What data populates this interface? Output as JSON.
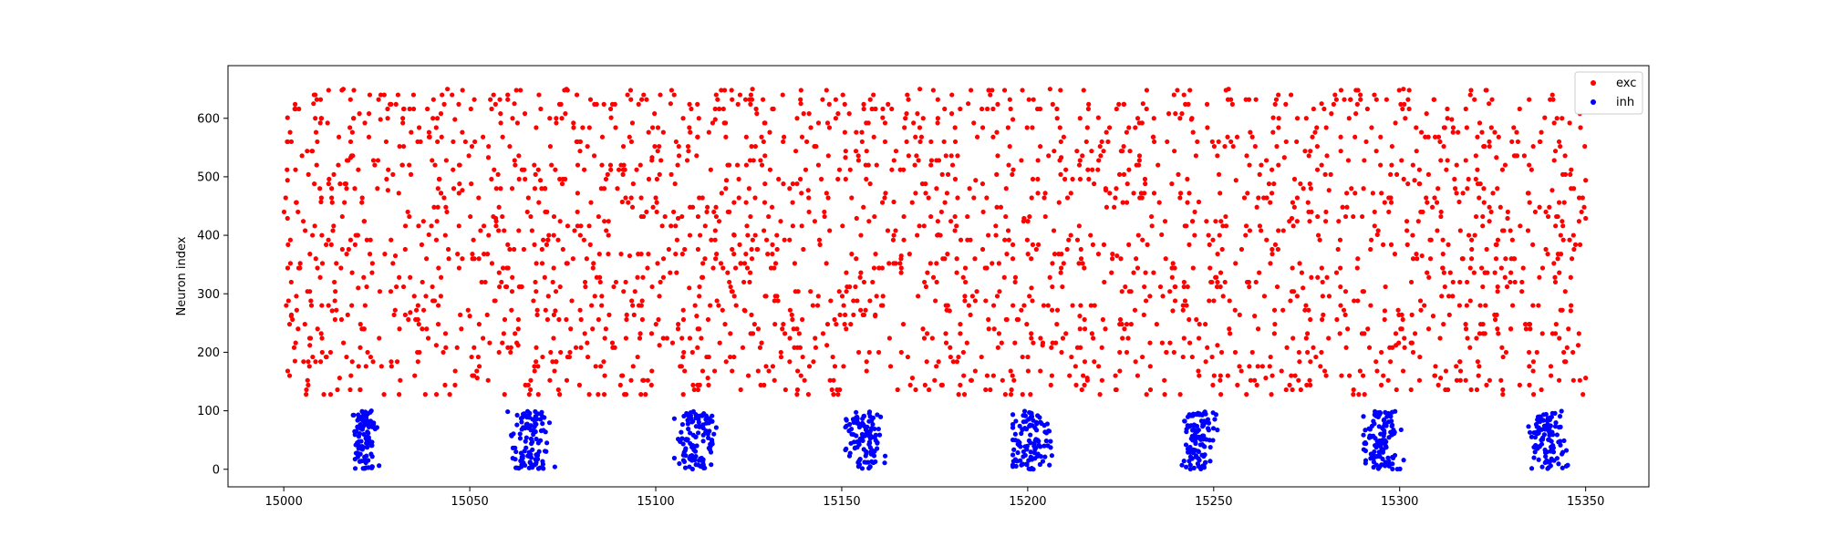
{
  "chart_data": {
    "type": "scatter",
    "title": "",
    "xlabel": "",
    "ylabel": "Neuron index",
    "xlim": [
      14985,
      15367
    ],
    "ylim": [
      -30,
      690
    ],
    "xticks": [
      15000,
      15050,
      15100,
      15150,
      15200,
      15250,
      15300,
      15350
    ],
    "yticks": [
      0,
      100,
      200,
      300,
      400,
      500,
      600
    ],
    "xtick_labels": [
      "15000",
      "15050",
      "15100",
      "15150",
      "15200",
      "15250",
      "15300",
      "15350"
    ],
    "ytick_labels": [
      "0",
      "100",
      "200",
      "300",
      "400",
      "500",
      "600"
    ],
    "grid": false,
    "legend": {
      "placement": "top-right"
    },
    "series": [
      {
        "name": "exc",
        "color": "#ff0000",
        "x_range": [
          15000,
          15350
        ],
        "y_range": [
          128,
          655
        ],
        "points": [
          [
            15001,
            601
          ],
          [
            15001,
            494
          ],
          [
            15001,
            429
          ],
          [
            15002,
            320
          ],
          [
            15002,
            262
          ],
          [
            15003,
            185
          ],
          [
            15004,
            344
          ],
          [
            15006,
            128
          ],
          [
            15007,
            212
          ],
          [
            15008,
            625
          ],
          [
            15009,
            560
          ],
          [
            15010,
            457
          ],
          [
            15012,
            392
          ],
          [
            15013,
            271
          ],
          [
            15015,
            156
          ],
          [
            15016,
            650
          ],
          [
            15018,
            533
          ],
          [
            15020,
            310
          ],
          [
            15021,
            240
          ],
          [
            15024,
            184
          ],
          [
            15026,
            598
          ],
          [
            15028,
            477
          ],
          [
            15030,
            365
          ],
          [
            15031,
            128
          ],
          [
            15034,
            268
          ],
          [
            15036,
            560
          ],
          [
            15039,
            401
          ],
          [
            15041,
            212
          ],
          [
            15044,
            650
          ],
          [
            15046,
            598
          ],
          [
            15048,
            477
          ],
          [
            15050,
            262
          ],
          [
            15052,
            156
          ],
          [
            15055,
            533
          ],
          [
            15057,
            429
          ],
          [
            15060,
            344
          ],
          [
            15062,
            625
          ],
          [
            15063,
            212
          ],
          [
            15066,
            128
          ],
          [
            15069,
            494
          ],
          [
            15071,
            392
          ],
          [
            15073,
            271
          ],
          [
            15076,
            650
          ],
          [
            15079,
            560
          ],
          [
            15081,
            320
          ],
          [
            15083,
            240
          ],
          [
            15086,
            184
          ],
          [
            15088,
            601
          ],
          [
            15091,
            457
          ],
          [
            15093,
            365
          ],
          [
            15096,
            128
          ],
          [
            15099,
            533
          ],
          [
            15101,
            212
          ],
          [
            15104,
            625
          ],
          [
            15106,
            429
          ],
          [
            15109,
            310
          ],
          [
            15111,
            262
          ],
          [
            15114,
            156
          ],
          [
            15116,
            598
          ],
          [
            15119,
            494
          ],
          [
            15121,
            401
          ],
          [
            15124,
            271
          ],
          [
            15126,
            650
          ],
          [
            15129,
            560
          ],
          [
            15131,
            344
          ],
          [
            15134,
            240
          ],
          [
            15136,
            184
          ],
          [
            15139,
            625
          ],
          [
            15141,
            477
          ],
          [
            15144,
            392
          ],
          [
            15146,
            212
          ],
          [
            15149,
            128
          ],
          [
            15151,
            533
          ],
          [
            15154,
            429
          ],
          [
            15156,
            320
          ],
          [
            15159,
            262
          ],
          [
            15161,
            601
          ],
          [
            15164,
            457
          ],
          [
            15166,
            365
          ],
          [
            15169,
            156
          ],
          [
            15171,
            650
          ],
          [
            15174,
            560
          ],
          [
            15176,
            401
          ],
          [
            15179,
            271
          ],
          [
            15181,
            184
          ],
          [
            15184,
            625
          ],
          [
            15186,
            494
          ],
          [
            15189,
            344
          ],
          [
            15191,
            240
          ],
          [
            15194,
            128
          ],
          [
            15196,
            598
          ],
          [
            15199,
            429
          ],
          [
            15201,
            310
          ],
          [
            15204,
            212
          ],
          [
            15206,
            650
          ],
          [
            15209,
            533
          ],
          [
            15211,
            392
          ],
          [
            15214,
            262
          ],
          [
            15216,
            156
          ],
          [
            15219,
            601
          ],
          [
            15221,
            477
          ],
          [
            15224,
            365
          ],
          [
            15226,
            240
          ],
          [
            15229,
            184
          ],
          [
            15231,
            625
          ],
          [
            15234,
            560
          ],
          [
            15236,
            401
          ],
          [
            15239,
            271
          ],
          [
            15241,
            128
          ],
          [
            15244,
            598
          ],
          [
            15246,
            457
          ],
          [
            15249,
            344
          ],
          [
            15251,
            212
          ],
          [
            15254,
            650
          ],
          [
            15256,
            494
          ],
          [
            15259,
            320
          ],
          [
            15261,
            262
          ],
          [
            15264,
            156
          ],
          [
            15266,
            601
          ],
          [
            15269,
            533
          ],
          [
            15271,
            429
          ],
          [
            15274,
            310
          ],
          [
            15276,
            184
          ],
          [
            15279,
            625
          ],
          [
            15281,
            477
          ],
          [
            15284,
            392
          ],
          [
            15286,
            240
          ],
          [
            15289,
            128
          ],
          [
            15291,
            560
          ],
          [
            15294,
            401
          ],
          [
            15296,
            271
          ],
          [
            15299,
            212
          ],
          [
            15301,
            650
          ],
          [
            15304,
            494
          ],
          [
            15306,
            365
          ],
          [
            15309,
            262
          ],
          [
            15311,
            156
          ],
          [
            15314,
            598
          ],
          [
            15316,
            457
          ],
          [
            15319,
            344
          ],
          [
            15321,
            184
          ],
          [
            15324,
            625
          ],
          [
            15326,
            533
          ],
          [
            15329,
            429
          ],
          [
            15331,
            320
          ],
          [
            15334,
            240
          ],
          [
            15336,
            128
          ],
          [
            15339,
            601
          ],
          [
            15341,
            477
          ],
          [
            15344,
            392
          ],
          [
            15346,
            271
          ],
          [
            15348,
            212
          ],
          [
            15350,
            494
          ],
          [
            15350,
            429
          ],
          [
            15350,
            156
          ]
        ]
      },
      {
        "name": "inh",
        "color": "#0000ff",
        "bursts": [
          {
            "center": 15022,
            "x_range": [
              15018,
              15026
            ]
          },
          {
            "center": 15066,
            "x_range": [
              15060,
              15074
            ]
          },
          {
            "center": 15111,
            "x_range": [
              15105,
              15119
            ]
          },
          {
            "center": 15156,
            "x_range": [
              15151,
              15164
            ]
          },
          {
            "center": 15201,
            "x_range": [
              15196,
              15213
            ]
          },
          {
            "center": 15246,
            "x_range": [
              15241,
              15252
            ]
          },
          {
            "center": 15295,
            "x_range": [
              15288,
              15302
            ]
          },
          {
            "center": 15340,
            "x_range": [
              15333,
              15346
            ]
          }
        ],
        "y_range": [
          0,
          100
        ]
      }
    ]
  }
}
